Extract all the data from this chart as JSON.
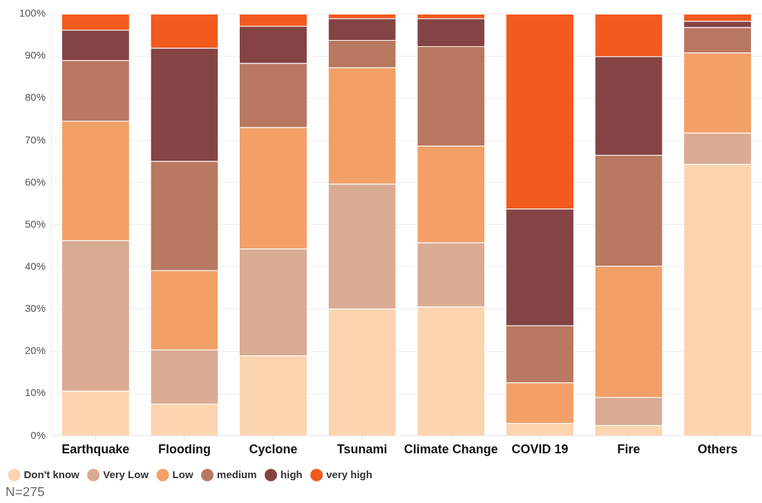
{
  "chart_data": {
    "type": "bar",
    "stacked": true,
    "categories": [
      "Earthquake",
      "Flooding",
      "Cyclone",
      "Tsunami",
      "Climate Change",
      "COVID 19",
      "Fire",
      "Others"
    ],
    "series": [
      {
        "name": "Don't know",
        "color": "#fcd5b0",
        "values": [
          10.6,
          7.6,
          19.0,
          30.1,
          30.6,
          3.0,
          2.5,
          64.4
        ]
      },
      {
        "name": "Very Low",
        "color": "#d9ab93",
        "values": [
          35.7,
          12.8,
          25.3,
          29.6,
          15.2,
          0,
          6.6,
          7.4
        ]
      },
      {
        "name": "Low",
        "color": "#f2a068",
        "values": [
          28.3,
          18.8,
          28.8,
          27.6,
          22.9,
          9.6,
          31.1,
          19.0
        ]
      },
      {
        "name": "medium",
        "color": "#b97860",
        "values": [
          14.4,
          25.9,
          15.2,
          6.5,
          23.6,
          13.5,
          26.3,
          6.0
        ]
      },
      {
        "name": "high",
        "color": "#854444",
        "values": [
          7.2,
          26.8,
          8.8,
          5.1,
          6.6,
          27.7,
          23.4,
          1.5
        ]
      },
      {
        "name": "very high",
        "color": "#f25a1e",
        "values": [
          3.8,
          8.1,
          2.9,
          1.1,
          1.1,
          46.2,
          10.1,
          1.7
        ]
      }
    ],
    "ylim": [
      0,
      100
    ],
    "yticks": [
      {
        "value": 0,
        "label": "0%"
      },
      {
        "value": 10,
        "label": "10%"
      },
      {
        "value": 20,
        "label": "20%"
      },
      {
        "value": 30,
        "label": "30%"
      },
      {
        "value": 40,
        "label": "40%"
      },
      {
        "value": 50,
        "label": "50%"
      },
      {
        "value": 60,
        "label": "60%"
      },
      {
        "value": 70,
        "label": "70%"
      },
      {
        "value": 80,
        "label": "80%"
      },
      {
        "value": 90,
        "label": "90%"
      },
      {
        "value": 100,
        "label": "100%"
      }
    ],
    "grid": "y",
    "legend": "bottom left",
    "annotations": [
      "N=275"
    ]
  }
}
